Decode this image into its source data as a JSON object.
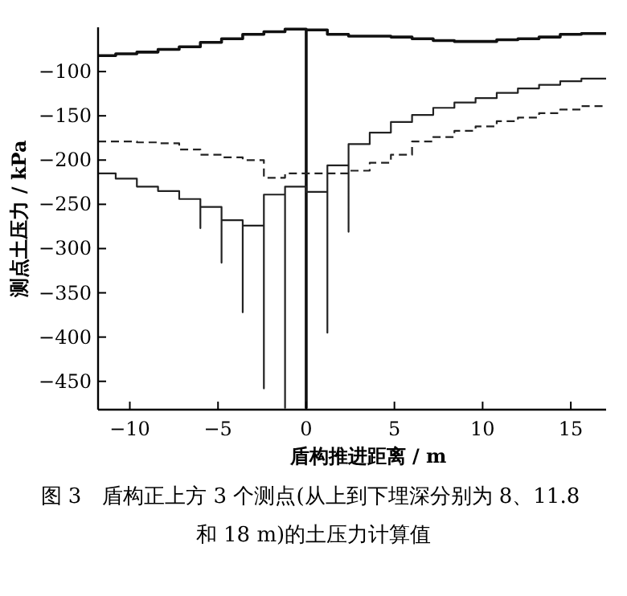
{
  "chart_data": {
    "type": "step",
    "xlabel": "盾构推进距离 / m",
    "ylabel": "测点土压力 / kPa",
    "annotations": [
      "图 3　盾构正上方 3 个测点(从上到下埋深分别为 8、11.8 和 18 m)的土压力计算值"
    ],
    "xlim": [
      -11.8,
      17
    ],
    "ylim": [
      -482,
      -50
    ],
    "xticks": [
      -10,
      -5,
      0,
      5,
      10,
      15
    ],
    "yticks": [
      -100,
      -150,
      -200,
      -250,
      -300,
      -350,
      -400,
      -450
    ],
    "grid": false,
    "marker": "none",
    "series": [
      {
        "color": "#111111",
        "line_style": "solid",
        "x": [
          -11.8,
          -10.8,
          -9.6,
          -8.4,
          -7.2,
          -6.0,
          -4.8,
          -3.6,
          -2.4,
          -1.2,
          0,
          0,
          1.2,
          2.4,
          3.6,
          4.8,
          6.0,
          7.2,
          8.4,
          9.6,
          10.8,
          12.0,
          13.2,
          14.4,
          15.6,
          17
        ],
        "values": [
          -82,
          -80,
          -78,
          -75,
          -72,
          -67,
          -63,
          -58,
          -55,
          -52,
          -480,
          -53,
          -58,
          -60,
          -60,
          -61,
          -63,
          -65,
          -66,
          -66,
          -64,
          -63,
          -61,
          -58,
          -57,
          -57
        ]
      },
      {
        "color": "#222222",
        "line_style": "solid",
        "x": [
          -11.8,
          -10.8,
          -9.6,
          -8.4,
          -7.2,
          -6.0,
          -6.0,
          -4.8,
          -4.8,
          -3.6,
          -3.6,
          -2.4,
          -2.4,
          -1.2,
          -1.2,
          0,
          1.2,
          1.2,
          2.4,
          2.4,
          3.6,
          4.8,
          6.0,
          7.2,
          8.4,
          9.6,
          10.8,
          12.0,
          13.2,
          14.4,
          15.6,
          17
        ],
        "values": [
          -215,
          -221,
          -230,
          -235,
          -244,
          -277,
          -253,
          -316,
          -268,
          -372,
          -274,
          -458,
          -239,
          -480,
          -230,
          -236,
          -395,
          -206,
          -281,
          -182,
          -169,
          -157,
          -149,
          -141,
          -135,
          -130,
          -124,
          -119,
          -115,
          -111,
          -108,
          -108
        ]
      },
      {
        "color": "#222222",
        "line_style": "dashed",
        "x": [
          -11.8,
          -9.6,
          -8.4,
          -7.2,
          -6.0,
          -4.8,
          -3.6,
          -2.4,
          -1.2,
          0,
          1.2,
          2.4,
          3.6,
          4.8,
          6.0,
          7.2,
          8.4,
          9.6,
          10.8,
          12.0,
          13.2,
          14.4,
          15.6,
          17
        ],
        "values": [
          -179,
          -180,
          -181,
          -188,
          -194,
          -197,
          -200,
          -220,
          -215,
          -215,
          -215,
          -212,
          -203,
          -194,
          -179,
          -174,
          -167,
          -162,
          -156,
          -152,
          -147,
          -143,
          -139,
          -139
        ]
      }
    ]
  }
}
